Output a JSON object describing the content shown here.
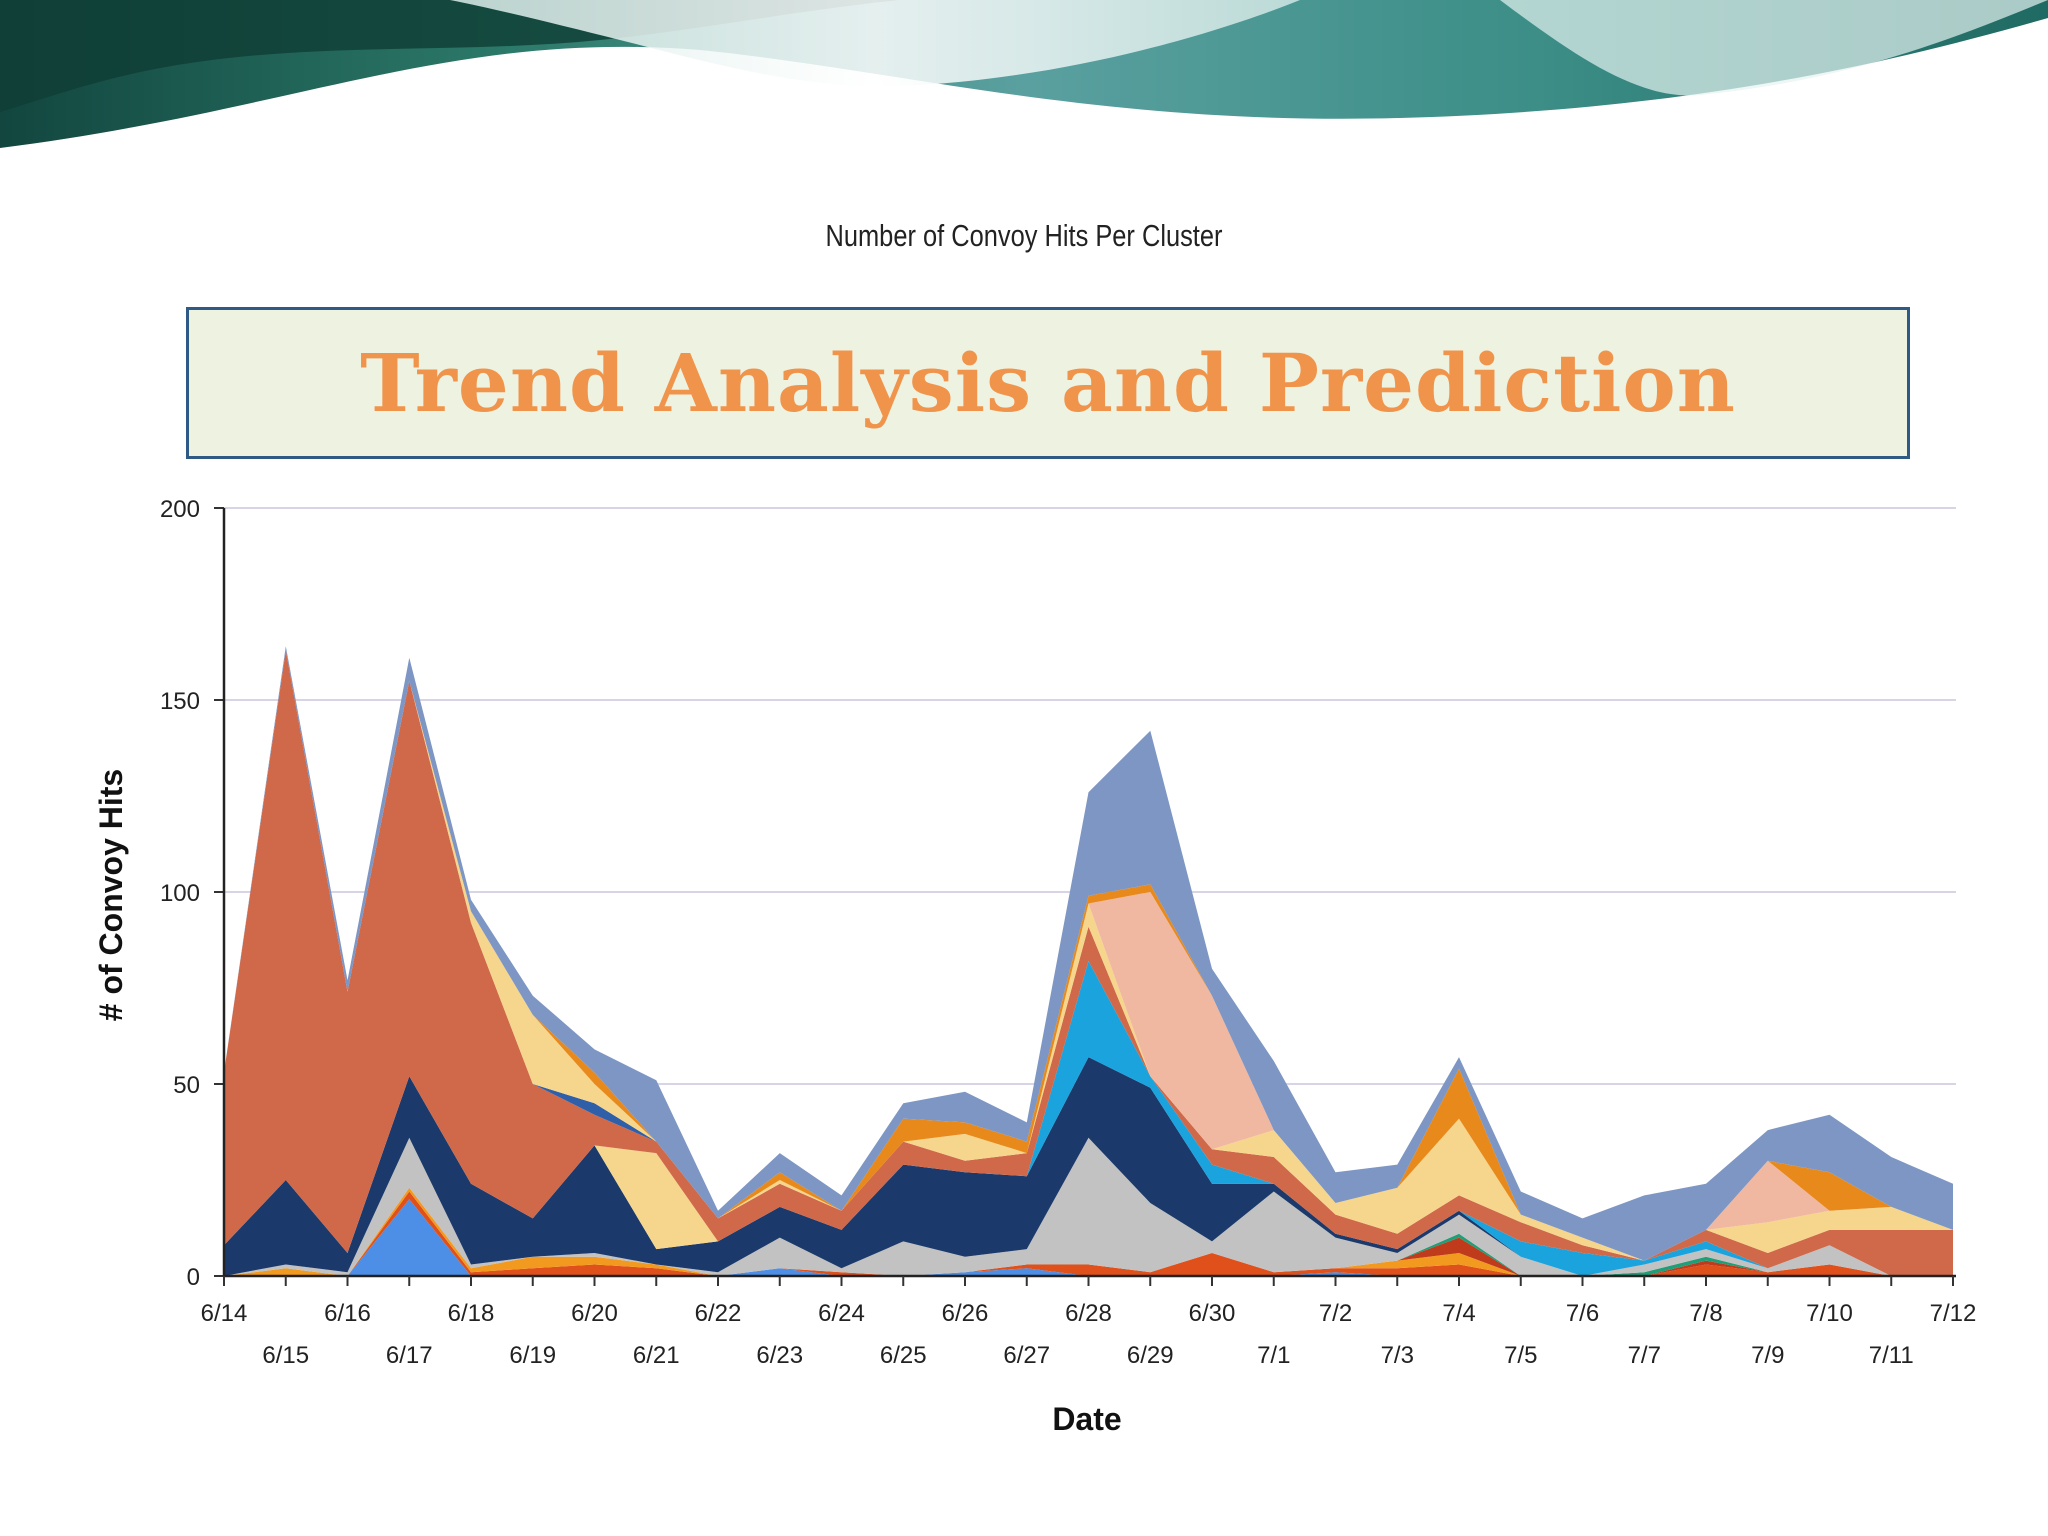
{
  "slide": {
    "title": "Trend Analysis and Prediction"
  },
  "colors": {
    "title": "#f0944b",
    "title_box_fill": "#eef2e1",
    "title_box_border": "#2f5a86"
  },
  "chart_data": {
    "type": "area",
    "stacked": true,
    "title": "Number of Convoy Hits Per Cluster",
    "xlabel": "Date",
    "ylabel": "# of Convoy Hits",
    "ylim": [
      0,
      200
    ],
    "yticks": [
      0,
      50,
      100,
      150,
      200
    ],
    "grid": "horizontal",
    "x": [
      "6/14",
      "6/15",
      "6/16",
      "6/17",
      "6/18",
      "6/19",
      "6/20",
      "6/21",
      "6/22",
      "6/23",
      "6/24",
      "6/25",
      "6/26",
      "6/27",
      "6/28",
      "6/29",
      "6/30",
      "7/1",
      "7/2",
      "7/3",
      "7/4",
      "7/5",
      "7/6",
      "7/7",
      "7/8",
      "7/9",
      "7/10",
      "7/11",
      "7/12"
    ],
    "series": [
      {
        "color": "#4d8fe6",
        "values": [
          0,
          0,
          0,
          20,
          0,
          0,
          0,
          0,
          0,
          2,
          0,
          0,
          1,
          2,
          0,
          0,
          0,
          0,
          1,
          0,
          0,
          0,
          0,
          0,
          0,
          0,
          0,
          0,
          0
        ]
      },
      {
        "color": "#e0501b",
        "values": [
          0,
          0,
          0,
          2,
          1,
          2,
          3,
          2,
          0,
          0,
          1,
          0,
          0,
          1,
          3,
          1,
          6,
          1,
          1,
          2,
          3,
          0,
          0,
          0,
          3,
          1,
          3,
          0,
          0
        ]
      },
      {
        "color": "#f29a1f",
        "values": [
          0,
          2,
          0,
          1,
          1,
          3,
          2,
          1,
          0,
          0,
          0,
          0,
          0,
          0,
          0,
          0,
          0,
          0,
          0,
          2,
          3,
          0,
          0,
          0,
          0,
          0,
          0,
          0,
          0
        ]
      },
      {
        "color": "#c03a1c",
        "values": [
          0,
          0,
          0,
          0,
          0,
          0,
          0,
          0,
          0,
          0,
          0,
          0,
          0,
          0,
          0,
          0,
          0,
          0,
          0,
          0,
          4,
          0,
          0,
          0,
          1,
          0,
          0,
          0,
          0
        ]
      },
      {
        "color": "#1f9e78",
        "values": [
          0,
          0,
          0,
          0,
          0,
          0,
          0,
          0,
          0,
          0,
          0,
          0,
          0,
          0,
          0,
          0,
          0,
          0,
          0,
          0,
          1,
          0,
          0,
          1,
          1,
          0,
          0,
          0,
          0
        ]
      },
      {
        "color": "#c2c2c2",
        "values": [
          0,
          1,
          1,
          13,
          1,
          0,
          1,
          0,
          1,
          8,
          1,
          9,
          4,
          4,
          33,
          18,
          3,
          21,
          8,
          2,
          5,
          5,
          0,
          2,
          2,
          1,
          5,
          0,
          0
        ]
      },
      {
        "color": "#1b3a6b",
        "values": [
          8,
          22,
          5,
          16,
          21,
          10,
          28,
          4,
          8,
          8,
          10,
          20,
          22,
          19,
          21,
          30,
          15,
          2,
          1,
          1,
          1,
          0,
          0,
          0,
          0,
          0,
          0,
          0,
          0
        ]
      },
      {
        "color": "#1aa3dd",
        "values": [
          0,
          0,
          0,
          0,
          0,
          0,
          0,
          0,
          0,
          0,
          0,
          0,
          0,
          0,
          25,
          3,
          5,
          0,
          0,
          0,
          0,
          4,
          6,
          1,
          2,
          0,
          0,
          0,
          0
        ]
      },
      {
        "color": "#f6d58c",
        "values": [
          0,
          0,
          0,
          0,
          0,
          0,
          0,
          25,
          0,
          0,
          0,
          0,
          0,
          0,
          0,
          0,
          0,
          0,
          0,
          0,
          0,
          0,
          0,
          0,
          0,
          0,
          0,
          0,
          0
        ]
      },
      {
        "color": "#d0694a",
        "values": [
          45,
          138,
          68,
          103,
          68,
          35,
          8,
          3,
          6,
          6,
          5,
          6,
          3,
          6,
          9,
          0,
          4,
          7,
          5,
          4,
          4,
          5,
          2,
          0,
          3,
          4,
          4,
          12,
          12
        ]
      },
      {
        "color": "#2e5fa8",
        "values": [
          0,
          0,
          0,
          0,
          0,
          0,
          3,
          0,
          0,
          0,
          0,
          0,
          0,
          0,
          0,
          0,
          0,
          0,
          0,
          0,
          0,
          0,
          0,
          0,
          0,
          0,
          0,
          0,
          0
        ]
      },
      {
        "color": "#f6d58c",
        "values": [
          0,
          0,
          0,
          0,
          3,
          18,
          5,
          0,
          0,
          1,
          0,
          0,
          7,
          0,
          6,
          0,
          0,
          7,
          3,
          12,
          20,
          2,
          2,
          0,
          0,
          8,
          5,
          6,
          0
        ]
      },
      {
        "color": "#f0b8a0",
        "values": [
          0,
          0,
          0,
          0,
          0,
          0,
          0,
          0,
          0,
          0,
          0,
          0,
          0,
          0,
          0,
          48,
          40,
          0,
          0,
          0,
          0,
          0,
          0,
          0,
          0,
          16,
          0,
          0,
          0
        ]
      },
      {
        "color": "#e8891b",
        "values": [
          0,
          0,
          0,
          0,
          0,
          0,
          3,
          0,
          0,
          2,
          0,
          6,
          3,
          3,
          2,
          2,
          0,
          0,
          0,
          0,
          13,
          0,
          0,
          0,
          0,
          0,
          10,
          0,
          0
        ]
      },
      {
        "color": "#7d96c4",
        "values": [
          0,
          1,
          3,
          6,
          3,
          5,
          6,
          16,
          2,
          5,
          4,
          4,
          8,
          5,
          27,
          40,
          7,
          18,
          8,
          6,
          3,
          6,
          5,
          17,
          12,
          8,
          15,
          13,
          12
        ]
      }
    ]
  }
}
